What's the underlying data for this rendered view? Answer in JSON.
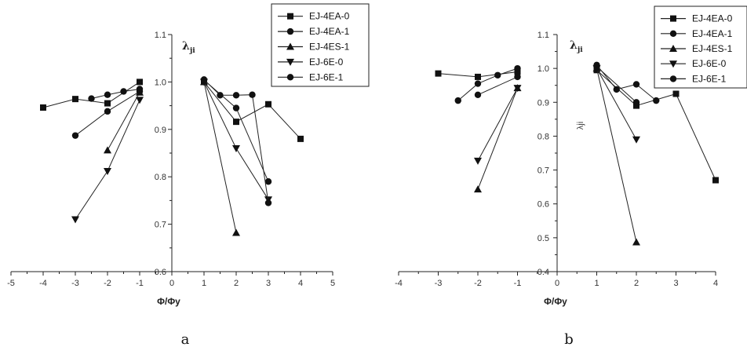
{
  "chart_data": [
    {
      "type": "line",
      "caption": "a",
      "xlabel": "Φ/Φy",
      "ylabel_main": "λ",
      "ylabel_sub": "ji",
      "xlim": [
        -5,
        5
      ],
      "ylim": [
        0.6,
        1.1
      ],
      "xticks": [
        -5,
        -4,
        -3,
        -2,
        -1,
        0,
        1,
        2,
        3,
        4,
        5
      ],
      "yticks": [
        "0.6",
        "0.7",
        "0.8",
        "0.9",
        "1.0",
        "1.1"
      ],
      "legend": "top-right",
      "series": [
        {
          "name": "EJ-4EA-0",
          "marker": "square",
          "points": [
            [
              -4,
              0.946
            ],
            [
              -3,
              0.964
            ],
            [
              -2,
              0.955
            ],
            [
              -1,
              1.0
            ],
            [
              1,
              1.0
            ],
            [
              2,
              0.916
            ],
            [
              3,
              0.953
            ],
            [
              4,
              0.88
            ]
          ]
        },
        {
          "name": "EJ-4EA-1",
          "marker": "circle",
          "points": [
            [
              -3,
              0.887
            ],
            [
              -2,
              0.938
            ],
            [
              -1,
              0.98
            ],
            [
              1,
              1.004
            ],
            [
              2,
              0.945
            ],
            [
              3,
              0.79
            ]
          ]
        },
        {
          "name": "EJ-4ES-1",
          "marker": "triangle-up",
          "points": [
            [
              -2,
              0.856
            ],
            [
              -1,
              0.978
            ],
            [
              1,
              1.0
            ],
            [
              2,
              0.682
            ]
          ]
        },
        {
          "name": "EJ-6E-0",
          "marker": "triangle-down",
          "points": [
            [
              -3,
              0.71
            ],
            [
              -2,
              0.812
            ],
            [
              -1,
              0.962
            ],
            [
              1,
              1.0
            ],
            [
              2,
              0.86
            ],
            [
              3,
              0.752
            ]
          ]
        },
        {
          "name": "EJ-6E-1",
          "marker": "circle",
          "points": [
            [
              -2.5,
              0.965
            ],
            [
              -2,
              0.973
            ],
            [
              -1.5,
              0.98
            ],
            [
              -1,
              0.985
            ],
            [
              1,
              1.005
            ],
            [
              1.5,
              0.972
            ],
            [
              2,
              0.972
            ],
            [
              2.5,
              0.973
            ],
            [
              3,
              0.745
            ]
          ]
        }
      ]
    },
    {
      "type": "line",
      "caption": "b",
      "xlabel": "Φ/Φy",
      "ylabel_main": "λ",
      "ylabel_sub": "ji",
      "ylabel_vertical": "λji",
      "xlim": [
        -4,
        4
      ],
      "ylim": [
        0.4,
        1.1
      ],
      "xticks": [
        -4,
        -3,
        -2,
        -1,
        0,
        1,
        2,
        3,
        4
      ],
      "yticks": [
        "0.4",
        "0.5",
        "0.6",
        "0.7",
        "0.8",
        "0.9",
        "1.0",
        "1.1"
      ],
      "legend": "top-right",
      "series": [
        {
          "name": "EJ-4EA-0",
          "marker": "square",
          "points": [
            [
              -3,
              0.985
            ],
            [
              -2,
              0.975
            ],
            [
              -1,
              0.99
            ],
            [
              1,
              0.995
            ],
            [
              2,
              0.89
            ],
            [
              3,
              0.925
            ],
            [
              4,
              0.67
            ]
          ]
        },
        {
          "name": "EJ-4EA-1",
          "marker": "circle",
          "points": [
            [
              -2,
              0.922
            ],
            [
              -1,
              0.975
            ],
            [
              1,
              1.005
            ],
            [
              2,
              0.9
            ]
          ]
        },
        {
          "name": "EJ-4ES-1",
          "marker": "triangle-up",
          "points": [
            [
              -2,
              0.643
            ],
            [
              -1,
              0.942
            ],
            [
              1,
              1.0
            ],
            [
              2,
              0.487
            ]
          ]
        },
        {
          "name": "EJ-6E-0",
          "marker": "triangle-down",
          "points": [
            [
              -2,
              0.727
            ],
            [
              -1,
              0.942
            ],
            [
              1,
              1.0
            ],
            [
              2,
              0.79
            ]
          ]
        },
        {
          "name": "EJ-6E-1",
          "marker": "circle",
          "points": [
            [
              -2.5,
              0.905
            ],
            [
              -2,
              0.955
            ],
            [
              -1.5,
              0.98
            ],
            [
              -1,
              1.0
            ],
            [
              1,
              1.01
            ],
            [
              1.5,
              0.938
            ],
            [
              2,
              0.953
            ],
            [
              2.5,
              0.905
            ]
          ]
        }
      ]
    }
  ]
}
